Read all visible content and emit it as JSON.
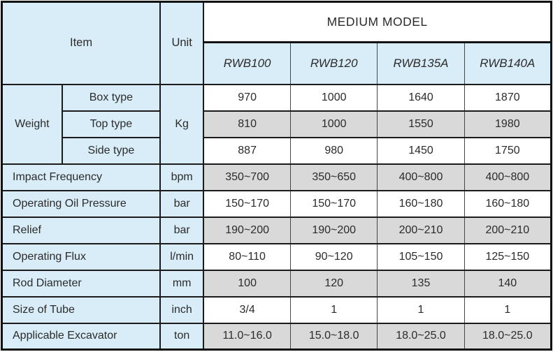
{
  "header": {
    "item": "Item",
    "unit": "Unit",
    "group": "MEDIUM MODEL",
    "models": [
      "RWB100",
      "RWB120",
      "RWB135A",
      "RWB140A"
    ]
  },
  "weight": {
    "label": "Weight",
    "unit": "Kg",
    "rows": [
      {
        "type": "Box type",
        "values": [
          "970",
          "1000",
          "1640",
          "1870"
        ]
      },
      {
        "type": "Top type",
        "values": [
          "810",
          "1000",
          "1550",
          "1980"
        ]
      },
      {
        "type": "Side type",
        "values": [
          "887",
          "980",
          "1450",
          "1750"
        ]
      }
    ]
  },
  "rows": [
    {
      "label": "Impact Frequency",
      "unit": "bpm",
      "values": [
        "350~700",
        "350~650",
        "400~800",
        "400~800"
      ]
    },
    {
      "label": "Operating Oil Pressure",
      "unit": "bar",
      "values": [
        "150~170",
        "150~170",
        "160~180",
        "160~180"
      ]
    },
    {
      "label": "Relief",
      "unit": "bar",
      "values": [
        "190~200",
        "190~200",
        "200~210",
        "200~210"
      ]
    },
    {
      "label": "Operating Flux",
      "unit": "l/min",
      "values": [
        "80~110",
        "90~120",
        "105~150",
        "125~150"
      ]
    },
    {
      "label": "Rod Diameter",
      "unit": "mm",
      "values": [
        "100",
        "120",
        "135",
        "140"
      ]
    },
    {
      "label": "Size of Tube",
      "unit": "inch",
      "values": [
        "3/4",
        "1",
        "1",
        "1"
      ]
    },
    {
      "label": "Applicable Excavator",
      "unit": "ton",
      "values": [
        "11.0~16.0",
        "15.0~18.0",
        "18.0~25.0",
        "18.0~25.0"
      ]
    }
  ],
  "colors": {
    "label_blue": "#d9edf8",
    "stripe_gray": "#d9d9d9",
    "border_black": "#1b1b1b",
    "text": "#2b2b2b"
  }
}
